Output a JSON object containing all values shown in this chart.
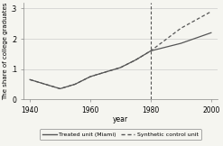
{
  "treated_x": [
    1940,
    1950,
    1955,
    1960,
    1965,
    1970,
    1975,
    1980,
    1990,
    2000
  ],
  "treated_y": [
    0.065,
    0.035,
    0.05,
    0.075,
    0.09,
    0.105,
    0.13,
    0.16,
    0.185,
    0.22
  ],
  "synthetic_x": [
    1940,
    1950,
    1955,
    1960,
    1965,
    1970,
    1975,
    1980,
    1990,
    2000
  ],
  "synthetic_y": [
    0.065,
    0.035,
    0.05,
    0.075,
    0.09,
    0.105,
    0.13,
    0.16,
    0.235,
    0.29
  ],
  "vline_x": 1980,
  "xlim": [
    1938,
    2002
  ],
  "ylim": [
    0,
    0.32
  ],
  "yticks": [
    0,
    0.1,
    0.2,
    0.3
  ],
  "ytick_labels": [
    "0",
    ".1",
    ".2",
    ".3"
  ],
  "xticks": [
    1940,
    1960,
    1980,
    2000
  ],
  "xlabel": "year",
  "ylabel": "The share of college graduates",
  "legend_treated": "Treated unit (Miami)",
  "legend_synthetic": "Synthetic control unit",
  "line_color": "#555555",
  "background_color": "#f5f5f0",
  "grid_color": "#cccccc"
}
